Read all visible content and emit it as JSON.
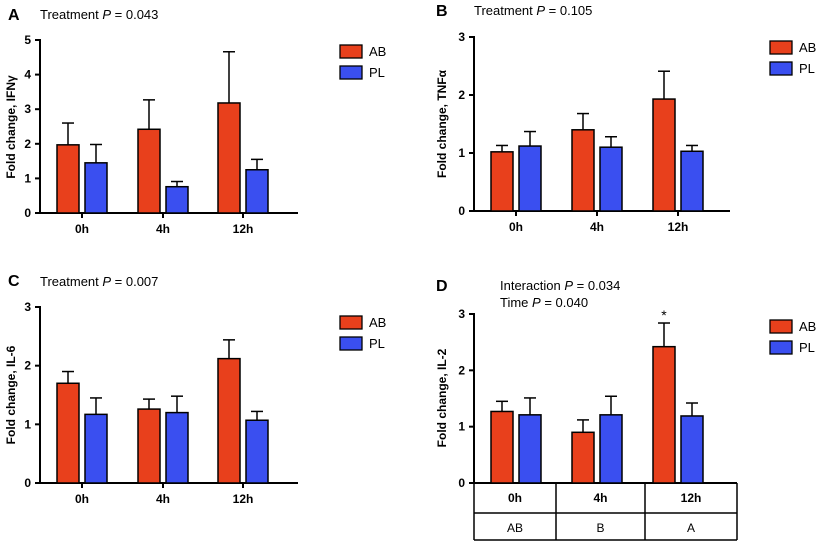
{
  "colors": {
    "AB": "#e8401c",
    "PL": "#3a4ff0",
    "axis": "#000000"
  },
  "chart_data": [
    {
      "panel": "A",
      "type": "bar",
      "subtitle_prefix": "Treatment ",
      "subtitle_italic": "P",
      "subtitle_suffix": " = 0.043",
      "subtitle2_prefix": "",
      "subtitle2_italic": "",
      "subtitle2_suffix": "",
      "ylabel": "Fold change, IFNγ",
      "categories": [
        "0h",
        "4h",
        "12h"
      ],
      "ylim": [
        0,
        5
      ],
      "yticks": [
        0,
        1,
        2,
        3,
        4,
        5
      ],
      "legend": [
        "AB",
        "PL"
      ],
      "series": [
        {
          "name": "AB",
          "values": [
            1.97,
            2.42,
            3.18
          ],
          "errors": [
            0.63,
            0.85,
            1.48
          ]
        },
        {
          "name": "PL",
          "values": [
            1.45,
            0.76,
            1.25
          ],
          "errors": [
            0.53,
            0.15,
            0.3
          ]
        }
      ],
      "annotations": [],
      "table": []
    },
    {
      "panel": "B",
      "type": "bar",
      "subtitle_prefix": "Treatment ",
      "subtitle_italic": "P",
      "subtitle_suffix": " = 0.105",
      "subtitle2_prefix": "",
      "subtitle2_italic": "",
      "subtitle2_suffix": "",
      "ylabel": "Fold change, TNFα",
      "categories": [
        "0h",
        "4h",
        "12h"
      ],
      "ylim": [
        0,
        3
      ],
      "yticks": [
        0,
        1,
        2,
        3
      ],
      "legend": [
        "AB",
        "PL"
      ],
      "series": [
        {
          "name": "AB",
          "values": [
            1.02,
            1.4,
            1.93
          ],
          "errors": [
            0.11,
            0.28,
            0.48
          ]
        },
        {
          "name": "PL",
          "values": [
            1.12,
            1.1,
            1.03
          ],
          "errors": [
            0.25,
            0.18,
            0.1
          ]
        }
      ],
      "annotations": [],
      "table": []
    },
    {
      "panel": "C",
      "type": "bar",
      "subtitle_prefix": "Treatment ",
      "subtitle_italic": "P",
      "subtitle_suffix": " = 0.007",
      "subtitle2_prefix": "",
      "subtitle2_italic": "",
      "subtitle2_suffix": "",
      "ylabel": "Fold change, IL-6",
      "categories": [
        "0h",
        "4h",
        "12h"
      ],
      "ylim": [
        0,
        3
      ],
      "yticks": [
        0,
        1,
        2,
        3
      ],
      "legend": [
        "AB",
        "PL"
      ],
      "series": [
        {
          "name": "AB",
          "values": [
            1.7,
            1.26,
            2.12
          ],
          "errors": [
            0.2,
            0.17,
            0.32
          ]
        },
        {
          "name": "PL",
          "values": [
            1.17,
            1.2,
            1.07
          ],
          "errors": [
            0.28,
            0.28,
            0.15
          ]
        }
      ],
      "annotations": [],
      "table": []
    },
    {
      "panel": "D",
      "type": "bar",
      "subtitle_prefix": "Interaction ",
      "subtitle_italic": "P",
      "subtitle_suffix": " = 0.034",
      "subtitle2_prefix": "Time ",
      "subtitle2_italic": "P",
      "subtitle2_suffix": "  = 0.040",
      "ylabel": "Fold change, IL-2",
      "categories": [
        "0h",
        "4h",
        "12h"
      ],
      "ylim": [
        0,
        3
      ],
      "yticks": [
        0,
        1,
        2,
        3
      ],
      "legend": [
        "AB",
        "PL"
      ],
      "series": [
        {
          "name": "AB",
          "values": [
            1.27,
            0.9,
            2.42
          ],
          "errors": [
            0.18,
            0.22,
            0.42
          ]
        },
        {
          "name": "PL",
          "values": [
            1.21,
            1.21,
            1.19
          ],
          "errors": [
            0.3,
            0.33,
            0.23
          ]
        }
      ],
      "annotations": [
        {
          "category": "12h",
          "series": "AB",
          "text": "*"
        }
      ],
      "table": [
        "AB",
        "B",
        "A"
      ]
    }
  ]
}
